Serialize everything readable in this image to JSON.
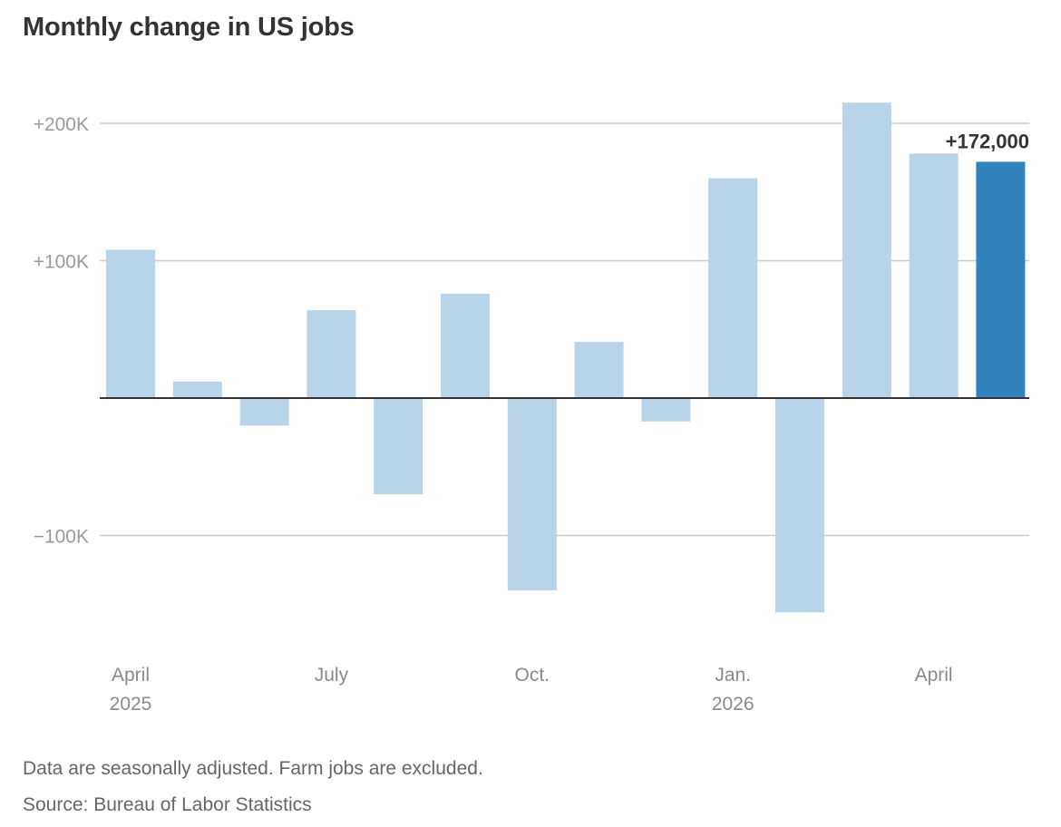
{
  "chart_data": {
    "type": "bar",
    "title": "Monthly change in US jobs",
    "xlabel": "",
    "ylabel": "",
    "categories": [
      "Apr 2025",
      "May 2025",
      "Jun 2025",
      "Jul 2025",
      "Aug 2025",
      "Sep 2025",
      "Oct 2025",
      "Nov 2025",
      "Dec 2025",
      "Jan 2026",
      "Feb 2026",
      "Mar 2026",
      "Apr 2026",
      "May 2026"
    ],
    "values": [
      108000,
      12000,
      -20000,
      64000,
      -70000,
      76000,
      -140000,
      41000,
      -17000,
      160000,
      -156000,
      215000,
      178000,
      172000
    ],
    "ylim": [
      -170000,
      230000
    ],
    "yticks": [
      {
        "value": 200000,
        "label": "+200K"
      },
      {
        "value": 100000,
        "label": "+100K"
      },
      {
        "value": -100000,
        "label": "−100K"
      }
    ],
    "xtick_labels": [
      {
        "index": 0,
        "line1": "April",
        "line2": "2025"
      },
      {
        "index": 3,
        "line1": "July",
        "line2": ""
      },
      {
        "index": 6,
        "line1": "Oct.",
        "line2": ""
      },
      {
        "index": 9,
        "line1": "Jan.",
        "line2": "2026"
      },
      {
        "index": 12,
        "line1": "April",
        "line2": ""
      }
    ],
    "highlight_index": 13,
    "highlight_label": "+172,000",
    "grid": true,
    "colors": {
      "bar": "#b8d4e8",
      "highlight": "#3182bd",
      "grid": "#cccccc",
      "zero_line": "#333333"
    }
  },
  "footer": {
    "note": "Data are seasonally adjusted. Farm jobs are excluded.",
    "source": "Source: Bureau of Labor Statistics"
  }
}
